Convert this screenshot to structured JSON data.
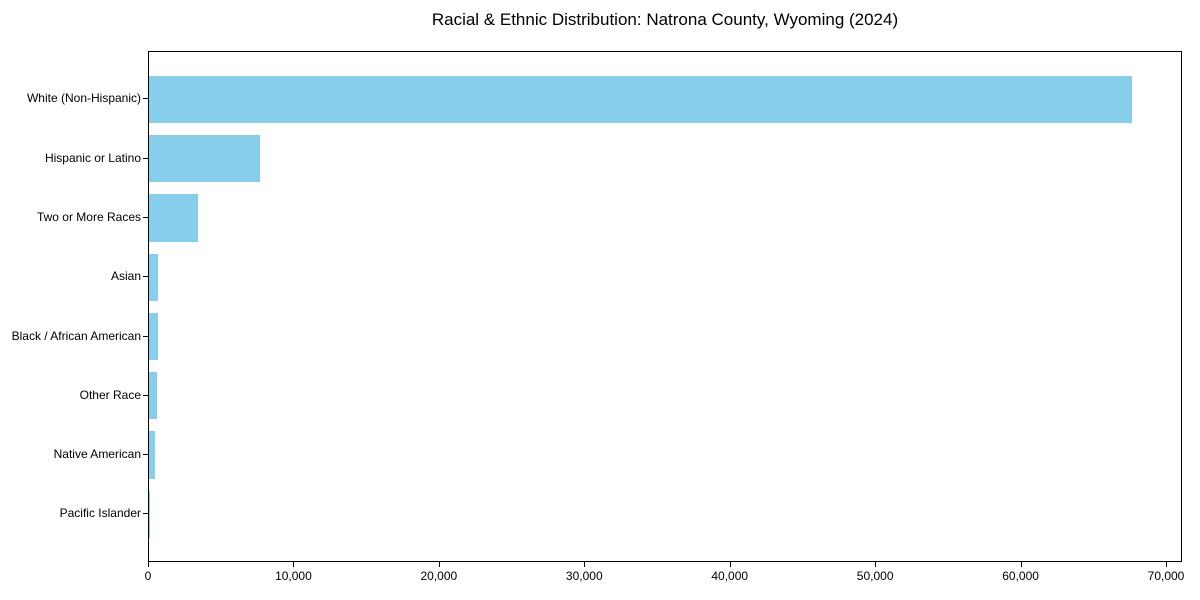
{
  "chart_data": {
    "type": "bar",
    "orientation": "horizontal",
    "title": "Racial & Ethnic Distribution: Natrona County, Wyoming (2024)",
    "xlabel": "",
    "ylabel": "",
    "categories": [
      "White (Non-Hispanic)",
      "Hispanic or Latino",
      "Two or More Races",
      "Asian",
      "Black / African American",
      "Other Race",
      "Native American",
      "Pacific Islander"
    ],
    "values": [
      67700,
      7650,
      3350,
      650,
      620,
      580,
      430,
      40
    ],
    "xlim": [
      0,
      71100
    ],
    "x_ticks": [
      0,
      10000,
      20000,
      30000,
      40000,
      50000,
      60000,
      70000
    ],
    "x_tick_labels": [
      "0",
      "10,000",
      "20,000",
      "30,000",
      "40,000",
      "50,000",
      "60,000",
      "70,000"
    ],
    "grid": false,
    "legend": null,
    "colors": {
      "bar": "#87CEEB",
      "axis": "#000000",
      "text": "#000000",
      "background": "#FFFFFF"
    }
  }
}
